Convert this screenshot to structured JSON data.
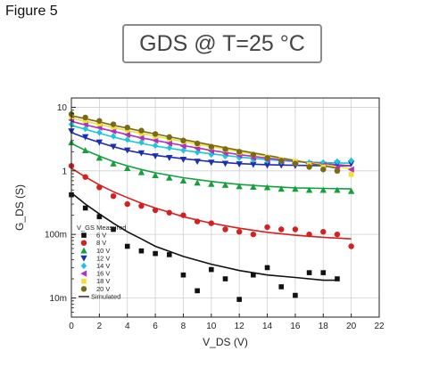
{
  "page": {
    "figure_label": "Figure 5",
    "title": "GDS @ T=25 °C"
  },
  "chart_data": {
    "type": "scatter",
    "title": "GDS @ T=25 °C",
    "xlabel": "V_DS (V)",
    "ylabel": "G_DS (S)",
    "xlim": [
      0,
      22
    ],
    "ylim": [
      0.005,
      14
    ],
    "y_scale": "log",
    "grid": true,
    "x_ticks": [
      0,
      2,
      4,
      6,
      8,
      10,
      12,
      14,
      16,
      18,
      20,
      22
    ],
    "x_tick_labels": [
      "0",
      "2",
      "4",
      "6",
      "8",
      "10",
      "12",
      "14",
      "16",
      "18",
      "20",
      "22"
    ],
    "y_ticks": [
      0.01,
      0.1,
      1,
      10
    ],
    "y_tick_labels": [
      "10m",
      "100m",
      "1",
      "10"
    ],
    "legend": {
      "position": "bottom-left",
      "header": "V_GS Measured",
      "simulated_label": "Simulated"
    },
    "series": [
      {
        "name": "6 V",
        "color": "#111111",
        "marker": "square",
        "measured": [
          [
            0,
            0.42
          ],
          [
            1,
            0.26
          ],
          [
            2,
            0.19
          ],
          [
            3,
            0.12
          ],
          [
            4,
            0.065
          ],
          [
            5,
            0.055
          ],
          [
            6,
            0.05
          ],
          [
            7,
            0.048
          ],
          [
            8,
            0.023
          ],
          [
            9,
            0.013
          ],
          [
            10,
            0.028
          ],
          [
            11,
            0.02
          ],
          [
            12,
            0.0095
          ],
          [
            13,
            0.023
          ],
          [
            14,
            0.03
          ],
          [
            15,
            0.015
          ],
          [
            16,
            0.011
          ],
          [
            17,
            0.025
          ],
          [
            18,
            0.025
          ],
          [
            19,
            0.02
          ]
        ],
        "simulated": [
          [
            0,
            0.45
          ],
          [
            1,
            0.3
          ],
          [
            2,
            0.21
          ],
          [
            3,
            0.15
          ],
          [
            4,
            0.11
          ],
          [
            5,
            0.085
          ],
          [
            6,
            0.065
          ],
          [
            8,
            0.045
          ],
          [
            10,
            0.034
          ],
          [
            12,
            0.027
          ],
          [
            14,
            0.023
          ],
          [
            16,
            0.021
          ],
          [
            18,
            0.019
          ],
          [
            19,
            0.019
          ]
        ]
      },
      {
        "name": "8 V",
        "color": "#d42020",
        "marker": "circle",
        "measured": [
          [
            0,
            1.2
          ],
          [
            1,
            0.8
          ],
          [
            2,
            0.55
          ],
          [
            3,
            0.4
          ],
          [
            4,
            0.3
          ],
          [
            5,
            0.28
          ],
          [
            6,
            0.24
          ],
          [
            7,
            0.22
          ],
          [
            8,
            0.2
          ],
          [
            9,
            0.16
          ],
          [
            10,
            0.15
          ],
          [
            11,
            0.12
          ],
          [
            12,
            0.11
          ],
          [
            13,
            0.1
          ],
          [
            14,
            0.13
          ],
          [
            15,
            0.12
          ],
          [
            16,
            0.12
          ],
          [
            17,
            0.1
          ],
          [
            18,
            0.11
          ],
          [
            19,
            0.1
          ],
          [
            20,
            0.065
          ]
        ],
        "simulated": [
          [
            0,
            1.1
          ],
          [
            1,
            0.8
          ],
          [
            2,
            0.6
          ],
          [
            3,
            0.47
          ],
          [
            4,
            0.38
          ],
          [
            5,
            0.31
          ],
          [
            6,
            0.26
          ],
          [
            8,
            0.19
          ],
          [
            10,
            0.15
          ],
          [
            12,
            0.125
          ],
          [
            14,
            0.108
          ],
          [
            16,
            0.097
          ],
          [
            18,
            0.09
          ],
          [
            20,
            0.085
          ]
        ]
      },
      {
        "name": "10 V",
        "color": "#14a03c",
        "marker": "triangle-up",
        "measured": [
          [
            0,
            2.8
          ],
          [
            1,
            2.1
          ],
          [
            2,
            1.6
          ],
          [
            3,
            1.3
          ],
          [
            4,
            1.1
          ],
          [
            5,
            0.95
          ],
          [
            6,
            0.85
          ],
          [
            7,
            0.78
          ],
          [
            8,
            0.7
          ],
          [
            9,
            0.65
          ],
          [
            10,
            0.62
          ],
          [
            11,
            0.6
          ],
          [
            12,
            0.57
          ],
          [
            13,
            0.56
          ],
          [
            14,
            0.55
          ],
          [
            15,
            0.52
          ],
          [
            16,
            0.52
          ],
          [
            17,
            0.5
          ],
          [
            18,
            0.5
          ],
          [
            19,
            0.5
          ],
          [
            20,
            0.48
          ]
        ],
        "simulated": [
          [
            0,
            2.7
          ],
          [
            1,
            2.1
          ],
          [
            2,
            1.7
          ],
          [
            3,
            1.4
          ],
          [
            4,
            1.2
          ],
          [
            5,
            1.05
          ],
          [
            6,
            0.93
          ],
          [
            8,
            0.78
          ],
          [
            10,
            0.68
          ],
          [
            12,
            0.61
          ],
          [
            14,
            0.57
          ],
          [
            16,
            0.54
          ],
          [
            18,
            0.53
          ],
          [
            20,
            0.52
          ]
        ]
      },
      {
        "name": "12 V",
        "color": "#1d2fb0",
        "marker": "triangle-down",
        "measured": [
          [
            0,
            4.2
          ],
          [
            1,
            3.4
          ],
          [
            2,
            2.8
          ],
          [
            3,
            2.4
          ],
          [
            4,
            2.1
          ],
          [
            5,
            1.9
          ],
          [
            6,
            1.7
          ],
          [
            7,
            1.6
          ],
          [
            8,
            1.5
          ],
          [
            9,
            1.4
          ],
          [
            10,
            1.35
          ],
          [
            11,
            1.3
          ],
          [
            12,
            1.27
          ],
          [
            13,
            1.25
          ],
          [
            14,
            1.22
          ],
          [
            15,
            1.22
          ],
          [
            16,
            1.2
          ],
          [
            17,
            1.2
          ],
          [
            18,
            1.25
          ],
          [
            19,
            1.3
          ],
          [
            20,
            1.3
          ]
        ],
        "simulated": [
          [
            0,
            4.0
          ],
          [
            1,
            3.3
          ],
          [
            2,
            2.8
          ],
          [
            3,
            2.4
          ],
          [
            4,
            2.1
          ],
          [
            5,
            1.9
          ],
          [
            6,
            1.75
          ],
          [
            8,
            1.55
          ],
          [
            10,
            1.4
          ],
          [
            12,
            1.3
          ],
          [
            14,
            1.25
          ],
          [
            16,
            1.22
          ],
          [
            18,
            1.2
          ],
          [
            20,
            1.2
          ]
        ]
      },
      {
        "name": "14 V",
        "color": "#18c8d8",
        "marker": "diamond",
        "measured": [
          [
            0,
            5.4
          ],
          [
            1,
            4.6
          ],
          [
            2,
            4.0
          ],
          [
            3,
            3.5
          ],
          [
            4,
            3.1
          ],
          [
            5,
            2.8
          ],
          [
            6,
            2.5
          ],
          [
            7,
            2.3
          ],
          [
            8,
            2.1
          ],
          [
            9,
            1.95
          ],
          [
            10,
            1.8
          ],
          [
            11,
            1.7
          ],
          [
            12,
            1.6
          ],
          [
            13,
            1.5
          ],
          [
            14,
            1.45
          ],
          [
            15,
            1.4
          ],
          [
            16,
            1.38
          ],
          [
            17,
            1.35
          ],
          [
            18,
            1.35
          ],
          [
            19,
            1.4
          ],
          [
            20,
            1.45
          ]
        ],
        "simulated": [
          [
            0,
            5.2
          ],
          [
            1,
            4.5
          ],
          [
            2,
            3.9
          ],
          [
            3,
            3.4
          ],
          [
            4,
            3.0
          ],
          [
            5,
            2.7
          ],
          [
            6,
            2.45
          ],
          [
            8,
            2.1
          ],
          [
            10,
            1.85
          ],
          [
            12,
            1.65
          ],
          [
            14,
            1.5
          ],
          [
            16,
            1.4
          ],
          [
            18,
            1.35
          ],
          [
            20,
            1.32
          ]
        ]
      },
      {
        "name": "16 V",
        "color": "#b030c0",
        "marker": "triangle-left",
        "measured": [
          [
            0,
            6.3
          ],
          [
            1,
            5.4
          ],
          [
            2,
            4.8
          ],
          [
            3,
            4.2
          ],
          [
            4,
            3.7
          ],
          [
            5,
            3.3
          ],
          [
            6,
            3.0
          ],
          [
            7,
            2.7
          ],
          [
            8,
            2.45
          ],
          [
            9,
            2.25
          ],
          [
            10,
            2.05
          ],
          [
            11,
            1.9
          ],
          [
            12,
            1.75
          ],
          [
            13,
            1.6
          ],
          [
            14,
            1.5
          ],
          [
            15,
            1.42
          ],
          [
            16,
            1.35
          ],
          [
            17,
            1.28
          ],
          [
            18,
            1.22
          ],
          [
            19,
            1.12
          ],
          [
            20,
            1.05
          ]
        ],
        "simulated": [
          [
            0,
            6.0
          ],
          [
            1,
            5.3
          ],
          [
            2,
            4.7
          ],
          [
            3,
            4.2
          ],
          [
            4,
            3.7
          ],
          [
            5,
            3.3
          ],
          [
            6,
            3.0
          ],
          [
            8,
            2.5
          ],
          [
            10,
            2.1
          ],
          [
            12,
            1.8
          ],
          [
            14,
            1.58
          ],
          [
            16,
            1.42
          ],
          [
            18,
            1.3
          ],
          [
            20,
            1.2
          ]
        ]
      },
      {
        "name": "18 V",
        "color": "#f0e030",
        "marker": "square",
        "measured": [
          [
            0,
            7.1
          ],
          [
            1,
            6.2
          ],
          [
            2,
            5.5
          ],
          [
            3,
            4.9
          ],
          [
            4,
            4.4
          ],
          [
            5,
            3.9
          ],
          [
            6,
            3.5
          ],
          [
            7,
            3.2
          ],
          [
            8,
            2.9
          ],
          [
            9,
            2.6
          ],
          [
            10,
            2.35
          ],
          [
            11,
            2.15
          ],
          [
            12,
            1.95
          ],
          [
            13,
            1.8
          ],
          [
            14,
            1.65
          ],
          [
            15,
            1.5
          ],
          [
            16,
            1.4
          ],
          [
            17,
            1.25
          ],
          [
            18,
            1.15
          ],
          [
            19,
            1.0
          ],
          [
            20,
            0.88
          ]
        ],
        "simulated": [
          [
            0,
            6.8
          ],
          [
            1,
            6.0
          ],
          [
            2,
            5.4
          ],
          [
            3,
            4.8
          ],
          [
            4,
            4.3
          ],
          [
            5,
            3.9
          ],
          [
            6,
            3.5
          ],
          [
            8,
            2.9
          ],
          [
            10,
            2.4
          ],
          [
            12,
            2.0
          ],
          [
            14,
            1.7
          ],
          [
            16,
            1.45
          ],
          [
            18,
            1.25
          ],
          [
            20,
            1.08
          ]
        ]
      },
      {
        "name": "20 V",
        "color": "#7a6a18",
        "marker": "circle",
        "measured": [
          [
            0,
            7.8
          ],
          [
            1,
            6.9
          ],
          [
            2,
            6.1
          ],
          [
            3,
            5.4
          ],
          [
            4,
            4.8
          ],
          [
            5,
            4.3
          ],
          [
            6,
            3.8
          ],
          [
            7,
            3.4
          ],
          [
            8,
            3.0
          ],
          [
            9,
            2.7
          ],
          [
            10,
            2.4
          ],
          [
            11,
            2.2
          ],
          [
            12,
            2.0
          ],
          [
            13,
            1.8
          ],
          [
            14,
            1.6
          ],
          [
            15,
            1.45
          ],
          [
            16,
            1.3
          ],
          [
            17,
            1.15
          ],
          [
            18,
            1.05
          ],
          [
            19,
            1.0
          ]
        ],
        "simulated": [
          [
            0,
            7.4
          ],
          [
            1,
            6.6
          ],
          [
            2,
            5.9
          ],
          [
            3,
            5.2
          ],
          [
            4,
            4.7
          ],
          [
            5,
            4.2
          ],
          [
            6,
            3.8
          ],
          [
            8,
            3.1
          ],
          [
            10,
            2.55
          ],
          [
            12,
            2.1
          ],
          [
            14,
            1.75
          ],
          [
            16,
            1.45
          ],
          [
            18,
            1.2
          ],
          [
            19,
            1.1
          ]
        ]
      }
    ]
  }
}
